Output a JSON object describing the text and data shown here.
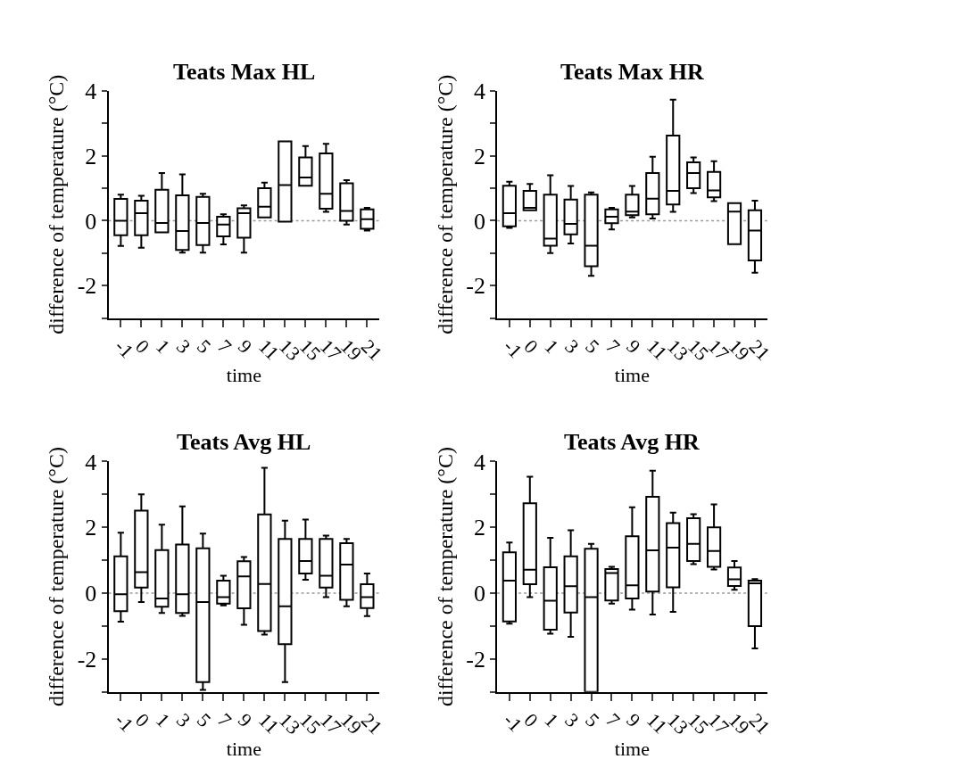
{
  "chart_data": [
    {
      "type": "box",
      "title": "Teats Max HL",
      "xlabel": "time",
      "ylabel": "difference of temperature (°C)",
      "categories": [
        "-1",
        "0",
        "1",
        "3",
        "5",
        "7",
        "9",
        "11",
        "13",
        "15",
        "17",
        "19",
        "21"
      ],
      "ylim": [
        -3,
        4
      ],
      "yticks": [
        {
          "value": -3,
          "label": null
        },
        -2,
        {
          "value": -1,
          "label": null
        },
        0,
        {
          "value": 1,
          "label": null
        },
        2,
        {
          "value": 3,
          "label": null
        },
        4
      ],
      "grid": false,
      "color": "#000000",
      "ref_lines": [
        {
          "axis": "y",
          "value": 0,
          "color": "#999999",
          "line_style": "dotted"
        }
      ],
      "boxes": [
        {
          "low": -0.78,
          "q1": -0.45,
          "median": 0,
          "q3": 0.67,
          "high": 0.8
        },
        {
          "low": -0.83,
          "q1": -0.45,
          "median": 0.23,
          "q3": 0.62,
          "high": 0.77
        },
        {
          "low": -0.36,
          "q1": -0.36,
          "median": -0.07,
          "q3": 0.95,
          "high": 1.47
        },
        {
          "low": -0.98,
          "q1": -0.9,
          "median": -0.32,
          "q3": 0.78,
          "high": 1.43
        },
        {
          "low": -0.98,
          "q1": -0.75,
          "median": -0.07,
          "q3": 0.73,
          "high": 0.83
        },
        {
          "low": -0.73,
          "q1": -0.48,
          "median": -0.12,
          "q3": 0.12,
          "high": 0.2
        },
        {
          "low": -0.98,
          "q1": -0.52,
          "median": 0.23,
          "q3": 0.38,
          "high": 0.47
        },
        {
          "low": 0.1,
          "q1": 0.1,
          "median": 0.43,
          "q3": 1.0,
          "high": 1.17
        },
        {
          "low": -0.03,
          "q1": -0.03,
          "median": 1.1,
          "q3": 2.44,
          "high": 2.44
        },
        {
          "low": 1.08,
          "q1": 1.08,
          "median": 1.33,
          "q3": 1.95,
          "high": 2.3
        },
        {
          "low": 0.27,
          "q1": 0.37,
          "median": 0.83,
          "q3": 2.07,
          "high": 2.37
        },
        {
          "low": -0.12,
          "q1": 0.0,
          "median": 0.3,
          "q3": 1.15,
          "high": 1.25
        },
        {
          "low": -0.3,
          "q1": -0.25,
          "median": 0.05,
          "q3": 0.35,
          "high": 0.4
        }
      ]
    },
    {
      "type": "box",
      "title": "Teats Max HR",
      "xlabel": "time",
      "ylabel": "difference of temperature (°C)",
      "categories": [
        "-1",
        "0",
        "1",
        "3",
        "5",
        "7",
        "9",
        "11",
        "13",
        "15",
        "17",
        "19",
        "21"
      ],
      "ylim": [
        -3,
        4
      ],
      "yticks": [
        {
          "value": -3,
          "label": null
        },
        -2,
        {
          "value": -1,
          "label": null
        },
        0,
        {
          "value": 1,
          "label": null
        },
        2,
        {
          "value": 3,
          "label": null
        },
        4
      ],
      "grid": false,
      "color": "#000000",
      "ref_lines": [
        {
          "axis": "y",
          "value": 0,
          "color": "#999999",
          "line_style": "dotted"
        }
      ],
      "boxes": [
        {
          "low": -0.22,
          "q1": -0.17,
          "median": 0.23,
          "q3": 1.08,
          "high": 1.2
        },
        {
          "low": 0.32,
          "q1": 0.32,
          "median": 0.4,
          "q3": 0.92,
          "high": 1.13
        },
        {
          "low": -1.0,
          "q1": -0.77,
          "median": -0.55,
          "q3": 0.8,
          "high": 1.4
        },
        {
          "low": -0.7,
          "q1": -0.42,
          "median": -0.1,
          "q3": 0.65,
          "high": 1.07
        },
        {
          "low": -1.7,
          "q1": -1.4,
          "median": -0.77,
          "q3": 0.8,
          "high": 0.87
        },
        {
          "low": -0.27,
          "q1": -0.08,
          "median": 0.12,
          "q3": 0.35,
          "high": 0.4
        },
        {
          "low": 0.1,
          "q1": 0.17,
          "median": 0.28,
          "q3": 0.8,
          "high": 1.07
        },
        {
          "low": 0.07,
          "q1": 0.2,
          "median": 0.68,
          "q3": 1.47,
          "high": 1.97
        },
        {
          "low": 0.27,
          "q1": 0.5,
          "median": 0.92,
          "q3": 2.62,
          "high": 3.73
        },
        {
          "low": 0.85,
          "q1": 1.0,
          "median": 1.47,
          "q3": 1.8,
          "high": 1.95
        },
        {
          "low": 0.6,
          "q1": 0.72,
          "median": 0.93,
          "q3": 1.5,
          "high": 1.83
        },
        {
          "low": -0.72,
          "q1": -0.72,
          "median": 0.28,
          "q3": 0.54,
          "high": 0.54
        },
        {
          "low": -1.6,
          "q1": -1.22,
          "median": -0.3,
          "q3": 0.32,
          "high": 0.62
        }
      ]
    },
    {
      "type": "box",
      "title": "Teats Avg HL",
      "xlabel": "time",
      "ylabel": "difference of temperature (°C)",
      "categories": [
        "-1",
        "0",
        "1",
        "3",
        "5",
        "7",
        "9",
        "11",
        "13",
        "15",
        "17",
        "19",
        "21"
      ],
      "ylim": [
        -3,
        4
      ],
      "yticks": [
        {
          "value": -3,
          "label": null
        },
        -2,
        {
          "value": -1,
          "label": null
        },
        0,
        {
          "value": 1,
          "label": null
        },
        2,
        {
          "value": 3,
          "label": null
        },
        4
      ],
      "grid": false,
      "color": "#000000",
      "ref_lines": [
        {
          "axis": "y",
          "value": 0,
          "color": "#999999",
          "line_style": "dotted"
        }
      ],
      "boxes": [
        {
          "low": -0.87,
          "q1": -0.55,
          "median": -0.03,
          "q3": 1.12,
          "high": 1.84
        },
        {
          "low": -0.27,
          "q1": 0.17,
          "median": 0.64,
          "q3": 2.51,
          "high": 3.0
        },
        {
          "low": -0.6,
          "q1": -0.41,
          "median": -0.16,
          "q3": 1.31,
          "high": 2.08
        },
        {
          "low": -0.69,
          "q1": -0.6,
          "median": -0.03,
          "q3": 1.48,
          "high": 2.64
        },
        {
          "low": -2.94,
          "q1": -2.7,
          "median": -0.27,
          "q3": 1.36,
          "high": 1.81
        },
        {
          "low": -0.37,
          "q1": -0.32,
          "median": -0.12,
          "q3": 0.38,
          "high": 0.53
        },
        {
          "low": -0.96,
          "q1": -0.46,
          "median": 0.51,
          "q3": 0.97,
          "high": 1.1
        },
        {
          "low": -1.26,
          "q1": -1.15,
          "median": 0.28,
          "q3": 2.39,
          "high": 3.81
        },
        {
          "low": -2.7,
          "q1": -1.55,
          "median": -0.4,
          "q3": 1.65,
          "high": 2.2
        },
        {
          "low": 0.41,
          "q1": 0.6,
          "median": 0.98,
          "q3": 1.65,
          "high": 2.24
        },
        {
          "low": -0.12,
          "q1": 0.17,
          "median": 0.53,
          "q3": 1.65,
          "high": 1.75
        },
        {
          "low": -0.4,
          "q1": -0.2,
          "median": 0.87,
          "q3": 1.52,
          "high": 1.65
        },
        {
          "low": -0.7,
          "q1": -0.45,
          "median": -0.12,
          "q3": 0.27,
          "high": 0.6
        }
      ]
    },
    {
      "type": "box",
      "title": "Teats Avg HR",
      "xlabel": "time",
      "ylabel": "difference of temperature (°C)",
      "categories": [
        "-1",
        "0",
        "1",
        "3",
        "5",
        "7",
        "9",
        "11",
        "13",
        "15",
        "17",
        "19",
        "21"
      ],
      "ylim": [
        -3,
        4
      ],
      "yticks": [
        {
          "value": -3,
          "label": null
        },
        -2,
        {
          "value": -1,
          "label": null
        },
        0,
        {
          "value": 1,
          "label": null
        },
        2,
        {
          "value": 3,
          "label": null
        },
        4
      ],
      "grid": false,
      "color": "#000000",
      "ref_lines": [
        {
          "axis": "y",
          "value": 0,
          "color": "#999999",
          "line_style": "dotted"
        }
      ],
      "boxes": [
        {
          "low": -0.93,
          "q1": -0.86,
          "median": 0.38,
          "q3": 1.24,
          "high": 1.54
        },
        {
          "low": -0.12,
          "q1": 0.27,
          "median": 0.71,
          "q3": 2.73,
          "high": 3.54
        },
        {
          "low": -1.23,
          "q1": -1.11,
          "median": -0.23,
          "q3": 0.79,
          "high": 1.68
        },
        {
          "low": -1.33,
          "q1": -0.59,
          "median": 0.21,
          "q3": 1.12,
          "high": 1.91
        },
        {
          "low": null,
          "q1": -3,
          "median": -0.12,
          "q3": 1.35,
          "high": 1.5
        },
        {
          "low": -0.32,
          "q1": -0.22,
          "median": 0.61,
          "q3": 0.73,
          "high": 0.8
        },
        {
          "low": -0.5,
          "q1": -0.16,
          "median": 0.24,
          "q3": 1.73,
          "high": 2.61
        },
        {
          "low": -0.65,
          "q1": 0.05,
          "median": 1.3,
          "q3": 2.93,
          "high": 3.72
        },
        {
          "low": -0.57,
          "q1": 0.18,
          "median": 1.38,
          "q3": 2.13,
          "high": 2.45
        },
        {
          "low": 0.88,
          "q1": 0.98,
          "median": 1.5,
          "q3": 2.28,
          "high": 2.4
        },
        {
          "low": 0.72,
          "q1": 0.8,
          "median": 1.28,
          "q3": 2.0,
          "high": 2.7
        },
        {
          "low": 0.1,
          "q1": 0.22,
          "median": 0.42,
          "q3": 0.78,
          "high": 0.98
        },
        {
          "low": -1.68,
          "q1": -1.0,
          "median": 0.3,
          "q3": 0.38,
          "high": 0.43
        }
      ]
    }
  ]
}
